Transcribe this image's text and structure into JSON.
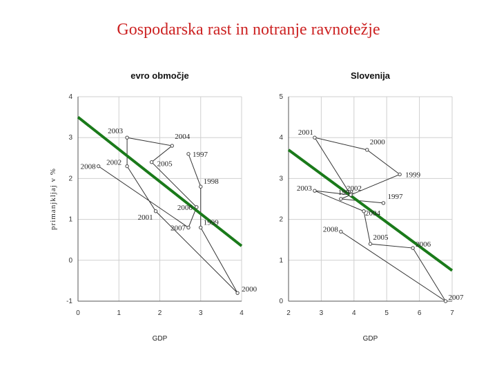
{
  "page": {
    "title": "Gospodarska rast in notranje ravnotežje"
  },
  "shared_ylabel": "primanjkljaj v %",
  "colors": {
    "title": "#cc2222",
    "trend": "#1a7a1a",
    "path": "#333333",
    "grid": "#cfcfcf"
  },
  "chart_data": [
    {
      "type": "scatter",
      "title": "evro območje",
      "xlabel": "GDP",
      "xlim": [
        0,
        4
      ],
      "ylim": [
        -1,
        4
      ],
      "xticks": [
        "0",
        "1",
        "2",
        "3",
        "4"
      ],
      "yticks": [
        "-1",
        "0",
        "1",
        "2",
        "3",
        "4"
      ],
      "trend": {
        "x": [
          0,
          4
        ],
        "y": [
          3.5,
          0.35
        ]
      },
      "path_order": [
        "1997",
        "1998",
        "1999",
        "2000",
        "2001",
        "2002",
        "2003",
        "2004",
        "2005",
        "2006",
        "2007",
        "2008"
      ],
      "points": [
        {
          "label": "1997",
          "x": 2.7,
          "y": 2.6
        },
        {
          "label": "1998",
          "x": 3.0,
          "y": 1.8
        },
        {
          "label": "1999",
          "x": 3.0,
          "y": 0.8
        },
        {
          "label": "2000",
          "x": 3.9,
          "y": -0.8
        },
        {
          "label": "2001",
          "x": 1.9,
          "y": 1.2
        },
        {
          "label": "2002",
          "x": 1.2,
          "y": 2.3
        },
        {
          "label": "2003",
          "x": 1.2,
          "y": 3.0
        },
        {
          "label": "2004",
          "x": 2.3,
          "y": 2.8
        },
        {
          "label": "2005",
          "x": 1.8,
          "y": 2.4
        },
        {
          "label": "2006",
          "x": 2.9,
          "y": 1.3
        },
        {
          "label": "2007",
          "x": 2.7,
          "y": 0.8
        },
        {
          "label": "2008",
          "x": 0.5,
          "y": 2.3
        }
      ]
    },
    {
      "type": "scatter",
      "title": "Slovenija",
      "xlabel": "GDP",
      "xlim": [
        2,
        7
      ],
      "ylim": [
        0,
        5
      ],
      "xticks": [
        "2",
        "3",
        "4",
        "5",
        "6",
        "7"
      ],
      "yticks": [
        "0",
        "1",
        "2",
        "3",
        "4",
        "5"
      ],
      "trend": {
        "x": [
          2,
          7
        ],
        "y": [
          3.7,
          0.75
        ]
      },
      "path_order": [
        "1997",
        "1998",
        "1999",
        "2000",
        "2001",
        "2002",
        "2003",
        "2004",
        "2005",
        "2006",
        "2007",
        "2008"
      ],
      "points": [
        {
          "label": "1997",
          "x": 4.9,
          "y": 2.4
        },
        {
          "label": "1998",
          "x": 3.6,
          "y": 2.5
        },
        {
          "label": "1999",
          "x": 5.4,
          "y": 3.1
        },
        {
          "label": "2000",
          "x": 4.4,
          "y": 3.7
        },
        {
          "label": "2001",
          "x": 2.8,
          "y": 4.0
        },
        {
          "label": "2002",
          "x": 3.9,
          "y": 2.6
        },
        {
          "label": "2003",
          "x": 2.8,
          "y": 2.7
        },
        {
          "label": "2004",
          "x": 4.3,
          "y": 2.2
        },
        {
          "label": "2005",
          "x": 4.5,
          "y": 1.4
        },
        {
          "label": "2006",
          "x": 5.8,
          "y": 1.3
        },
        {
          "label": "2007",
          "x": 6.8,
          "y": 0.0
        },
        {
          "label": "2008",
          "x": 3.6,
          "y": 1.7
        }
      ]
    }
  ]
}
